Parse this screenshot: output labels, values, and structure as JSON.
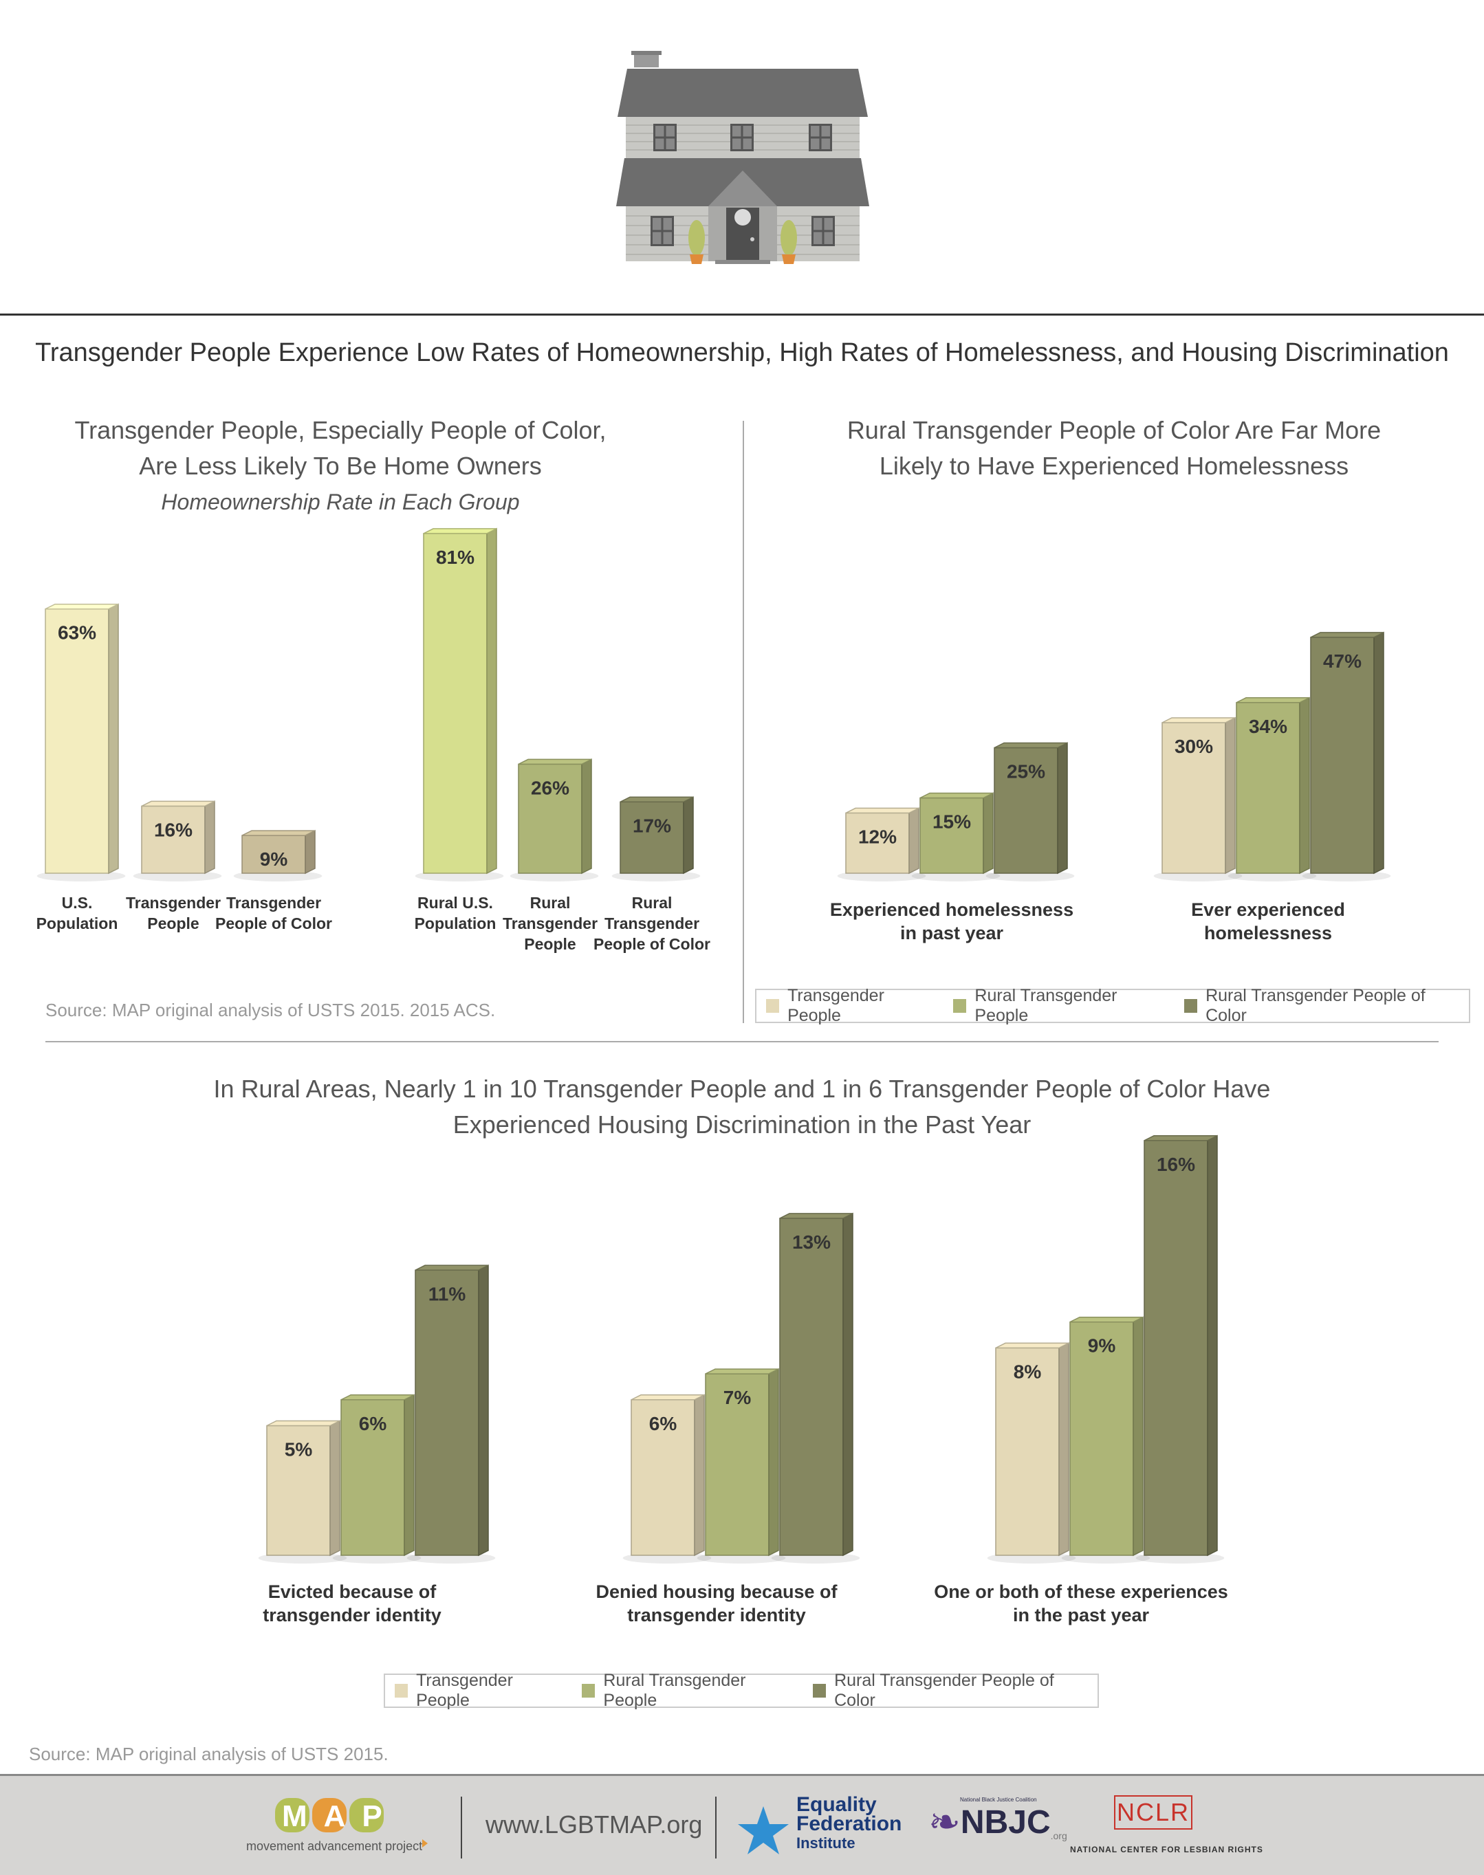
{
  "main_title": "Transgender People Experience Low Rates of Homeownership, High Rates of Homelessness, and Housing Discrimination",
  "colors": {
    "transgender": "#e4d9b7",
    "rural_transgender": "#adb577",
    "rural_transgender_poc": "#858760",
    "us_population": "#f3edbf",
    "rural_us_population": "#d6df8e",
    "transgender_poc": "#c9bd9a"
  },
  "homeownership": {
    "title_line1": "Transgender People, Especially People of Color,",
    "title_line2": "Are Less Likely To Be Home Owners",
    "subtitle": "Homeownership Rate in Each Group",
    "source": "Source: MAP original analysis of USTS 2015. 2015 ACS."
  },
  "homelessness": {
    "title_line1": "Rural Transgender People of Color Are Far More",
    "title_line2": "Likely to Have Experienced Homelessness"
  },
  "discrimination": {
    "title_line1": "In Rural Areas, Nearly 1 in 10 Transgender People and 1 in 6 Transgender People of Color Have",
    "title_line2": "Experienced Housing Discrimination in the Past Year",
    "source": "Source: MAP original analysis of USTS 2015."
  },
  "legend": {
    "item1": "Transgender People",
    "item2": "Rural Transgender People",
    "item3": "Rural Transgender People of Color"
  },
  "footer": {
    "map_logo": "MAP",
    "map_tagline": "movement advancement project",
    "website": "www.LGBTMAP.org",
    "efi_line1": "Equality",
    "efi_line2": "Federation",
    "efi_line3": "Institute",
    "nbjc_small": "National Black Justice Coalition",
    "nbjc": "NBJC",
    "nbjc_org": ".org",
    "nclr": "NCLR",
    "nclr_full": "NATIONAL CENTER FOR LESBIAN RIGHTS"
  },
  "chart_data": [
    {
      "type": "bar",
      "title": "Transgender People, Especially People of Color, Are Less Likely To Be Home Owners",
      "subtitle": "Homeownership Rate in Each Group",
      "categories": [
        "U.S. Population",
        "Transgender People",
        "Transgender People of Color",
        "Rural U.S. Population",
        "Rural Transgender People",
        "Rural Transgender People of Color"
      ],
      "category_labels": [
        [
          "U.S.",
          "Population"
        ],
        [
          "Transgender",
          "People"
        ],
        [
          "Transgender",
          "People of Color"
        ],
        [
          "Rural U.S.",
          "Population"
        ],
        [
          "Rural",
          "Transgender",
          "People"
        ],
        [
          "Rural",
          "Transgender",
          "People of Color"
        ]
      ],
      "values": [
        63,
        16,
        9,
        81,
        26,
        17
      ],
      "value_labels": [
        "63%",
        "16%",
        "9%",
        "81%",
        "26%",
        "17%"
      ],
      "unit": "%"
    },
    {
      "type": "bar",
      "title": "Rural Transgender People of Color Are Far More Likely to Have Experienced Homelessness",
      "categories": [
        "Experienced homelessness in past year",
        "Ever experienced homelessness"
      ],
      "category_labels": [
        [
          "Experienced homelessness",
          "in past year"
        ],
        [
          "Ever experienced",
          "homelessness"
        ]
      ],
      "series": [
        {
          "name": "Transgender People",
          "values": [
            12,
            30
          ],
          "value_labels": [
            "12%",
            "30%"
          ]
        },
        {
          "name": "Rural Transgender People",
          "values": [
            15,
            34
          ],
          "value_labels": [
            "15%",
            "34%"
          ]
        },
        {
          "name": "Rural Transgender People of Color",
          "values": [
            25,
            47
          ],
          "value_labels": [
            "25%",
            "47%"
          ]
        }
      ],
      "legend": "bottom"
    },
    {
      "type": "bar",
      "title": "In Rural Areas, Nearly 1 in 10 Transgender People and 1 in 6 Transgender People of Color Have Experienced Housing Discrimination in the Past Year",
      "categories": [
        "Evicted because of transgender identity",
        "Denied housing because of transgender identity",
        "One or both of these experiences in the past year"
      ],
      "category_labels": [
        [
          "Evicted because of",
          "transgender identity"
        ],
        [
          "Denied housing because of",
          "transgender identity"
        ],
        [
          "One or both of these experiences",
          "in the past year"
        ]
      ],
      "series": [
        {
          "name": "Transgender People",
          "values": [
            5,
            6,
            8
          ],
          "value_labels": [
            "5%",
            "6%",
            "8%"
          ]
        },
        {
          "name": "Rural Transgender People",
          "values": [
            6,
            7,
            9
          ],
          "value_labels": [
            "6%",
            "7%",
            "9%"
          ]
        },
        {
          "name": "Rural Transgender People of Color",
          "values": [
            11,
            13,
            16
          ],
          "value_labels": [
            "11%",
            "13%",
            "16%"
          ]
        }
      ],
      "legend": "bottom"
    }
  ]
}
